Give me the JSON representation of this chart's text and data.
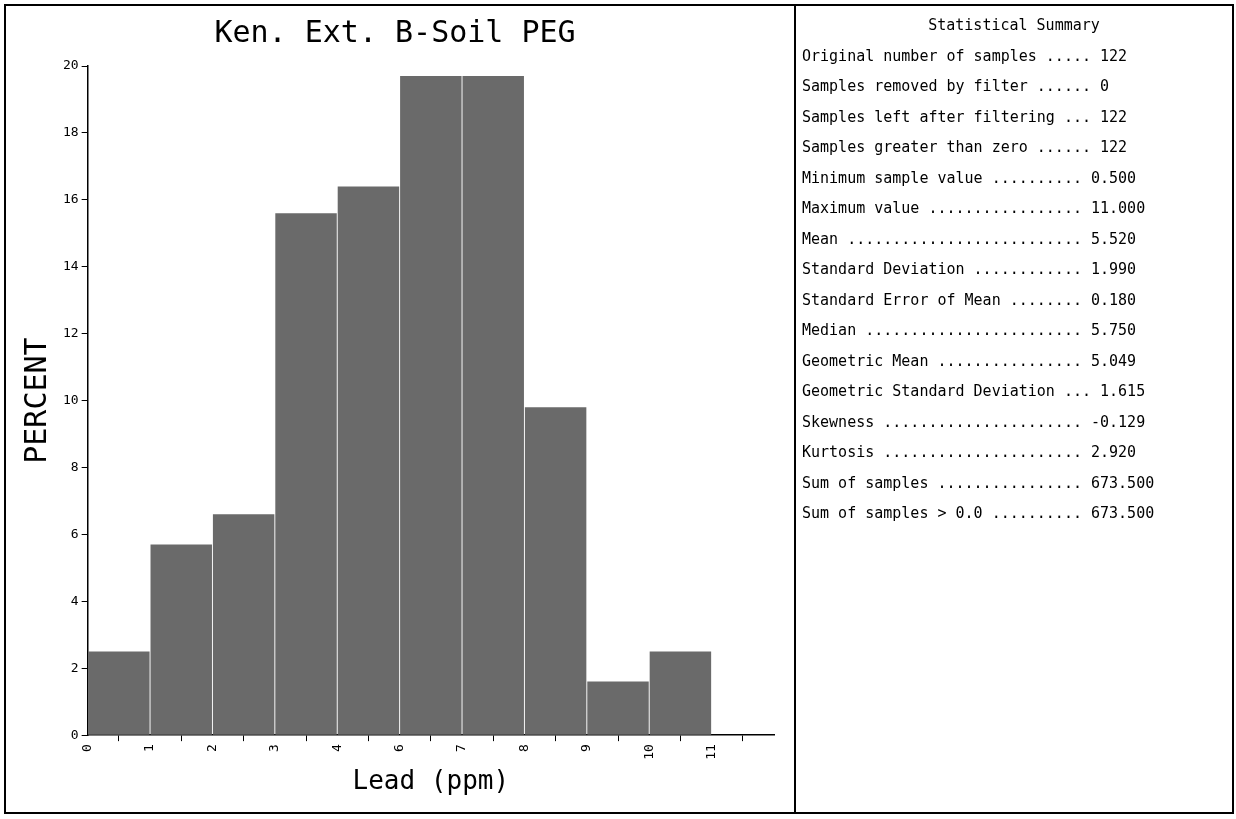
{
  "chart_data": {
    "type": "histogram",
    "title": "Ken. Ext. B-Soil PEG",
    "xlabel": "Lead (ppm)",
    "ylabel": "PERCENT",
    "bins": [
      0,
      1.1,
      2.2,
      3.3,
      4.4,
      5.5,
      6.6,
      7.7,
      8.8,
      9.9,
      11
    ],
    "values": [
      2.5,
      5.7,
      6.6,
      15.6,
      16.4,
      19.7,
      19.7,
      9.8,
      1.6,
      2.5
    ],
    "color": "#6a6a6a",
    "xlim": [
      0,
      12.1
    ],
    "xticks": [
      0,
      {
        "value": 1.1,
        "label": "1"
      },
      {
        "value": 2.2,
        "label": "2"
      },
      {
        "value": 3.3,
        "label": "3"
      },
      {
        "value": 4.4,
        "label": "4"
      },
      {
        "value": 5.5,
        "label": "6"
      },
      {
        "value": 6.6,
        "label": "7"
      },
      {
        "value": 7.7,
        "label": "8"
      },
      {
        "value": 8.8,
        "label": "9"
      },
      {
        "value": 9.9,
        "label": "10"
      },
      11
    ],
    "ylim": [
      0,
      20
    ],
    "yticks": [
      0,
      2,
      4,
      6,
      8,
      10,
      12,
      14,
      16,
      18,
      20
    ],
    "grid": false,
    "legend": false,
    "annotations": [
      "Statistical Summary",
      "Original number of samples ..... 122",
      "Samples removed by filter ...... 0",
      "Samples left after filtering ... 122",
      "Samples greater than zero ...... 122",
      "Minimum sample value .......... 0.500",
      "Maximum value ................. 11.000",
      "Mean .......................... 5.520",
      "Standard Deviation ............ 1.990",
      "Standard Error of Mean ........ 0.180",
      "Median ........................ 5.750",
      "Geometric Mean ................ 5.049",
      "Geometric Standard Deviation ... 1.615",
      "Skewness ...................... -0.129",
      "Kurtosis ...................... 2.920",
      "Sum of samples ................ 673.500",
      "Sum of samples > 0.0 .......... 673.500"
    ]
  }
}
